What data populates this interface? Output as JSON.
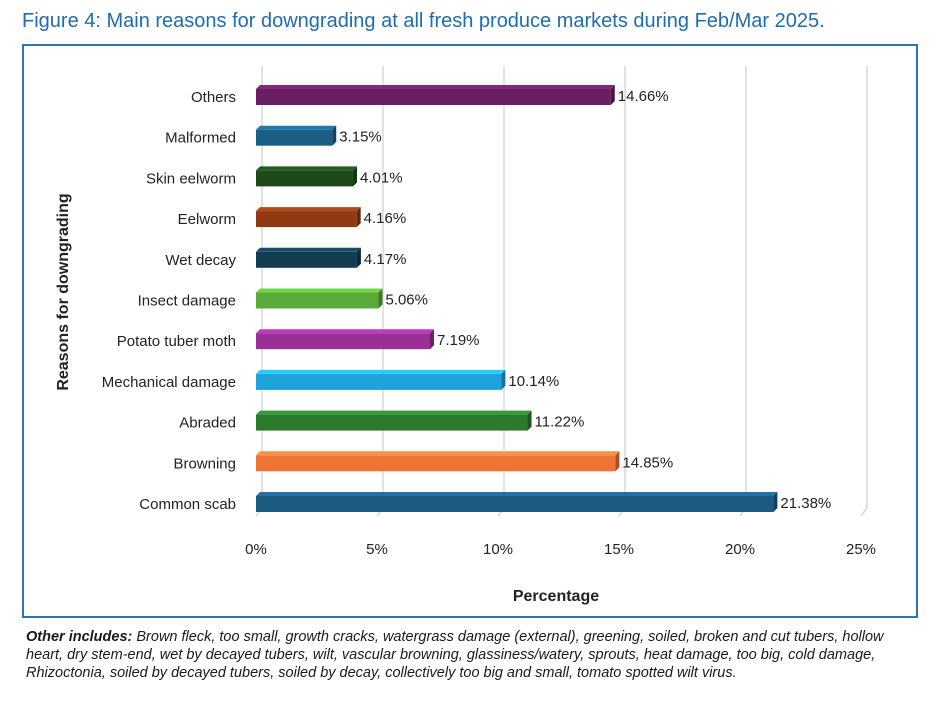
{
  "figure_title": "Figure 4: Main reasons for downgrading at all fresh produce markets during Feb/Mar 2025.",
  "footnote": {
    "label": "Other includes:",
    "text": " Brown fleck, too small, growth cracks, watergrass damage (external), greening, soiled, broken and cut tubers, hollow heart, dry stem-end, wet by decayed tubers, wilt, vascular browning, glassiness/watery, sprouts, heat damage, too big, cold damage, Rhizoctonia, soiled by decayed tubers, soiled by decay, collectively too big and small, tomato spotted wilt virus."
  },
  "chart_data": {
    "type": "bar",
    "orientation": "horizontal",
    "title": "",
    "xlabel": "Percentage",
    "ylabel": "Reasons for downgrading",
    "xlim": [
      0,
      25
    ],
    "x_ticks": [
      0,
      5,
      10,
      15,
      20,
      25
    ],
    "x_tick_labels": [
      "0%",
      "5%",
      "10%",
      "15%",
      "20%",
      "25%"
    ],
    "grid": "vertical",
    "categories": [
      "Others",
      "Malformed",
      "Skin eelworm",
      "Eelworm",
      "Wet decay",
      "Insect damage",
      "Potato tuber moth",
      "Mechanical damage",
      "Abraded",
      "Browning",
      "Common scab"
    ],
    "values": [
      14.66,
      3.15,
      4.01,
      4.16,
      4.17,
      5.06,
      7.19,
      10.14,
      11.22,
      14.85,
      21.38
    ],
    "value_labels": [
      "14.66%",
      "3.15%",
      "4.01%",
      "4.16%",
      "4.17%",
      "5.06%",
      "7.19%",
      "10.14%",
      "11.22%",
      "14.85%",
      "21.38%"
    ],
    "colors": [
      "#6a1f63",
      "#1b5f86",
      "#1e4a1a",
      "#8f3a12",
      "#123c52",
      "#5aaa3a",
      "#9b2f95",
      "#1ea3dd",
      "#2c7a2c",
      "#ee7334",
      "#1c5a80"
    ]
  }
}
